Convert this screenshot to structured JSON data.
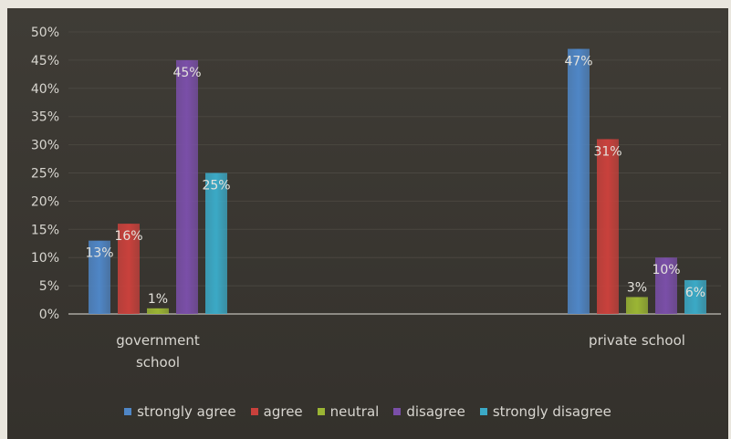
{
  "chart_data": {
    "type": "bar",
    "categories": [
      "government school",
      "private school"
    ],
    "series": [
      {
        "name": "strongly agree",
        "values": [
          13,
          47
        ],
        "color": "#4f86c6",
        "labels": [
          "13%",
          "47%"
        ]
      },
      {
        "name": "agree",
        "values": [
          16,
          31
        ],
        "color": "#c9413c",
        "labels": [
          "16%",
          "31%"
        ]
      },
      {
        "name": "neutral",
        "values": [
          1,
          3
        ],
        "color": "#9bb534",
        "labels": [
          "1%",
          "3%"
        ]
      },
      {
        "name": "disagree",
        "values": [
          45,
          10
        ],
        "color": "#7a4fa8",
        "labels": [
          "45%",
          "10%"
        ]
      },
      {
        "name": "strongly disagree",
        "values": [
          25,
          6
        ],
        "color": "#3ba9c6",
        "labels": [
          "25%",
          "6%"
        ]
      }
    ],
    "y_ticks": [
      "0%",
      "5%",
      "10%",
      "15%",
      "20%",
      "25%",
      "30%",
      "35%",
      "40%",
      "45%",
      "50%"
    ],
    "ylim": [
      0,
      50
    ],
    "grid": true,
    "legend_position": "bottom"
  }
}
